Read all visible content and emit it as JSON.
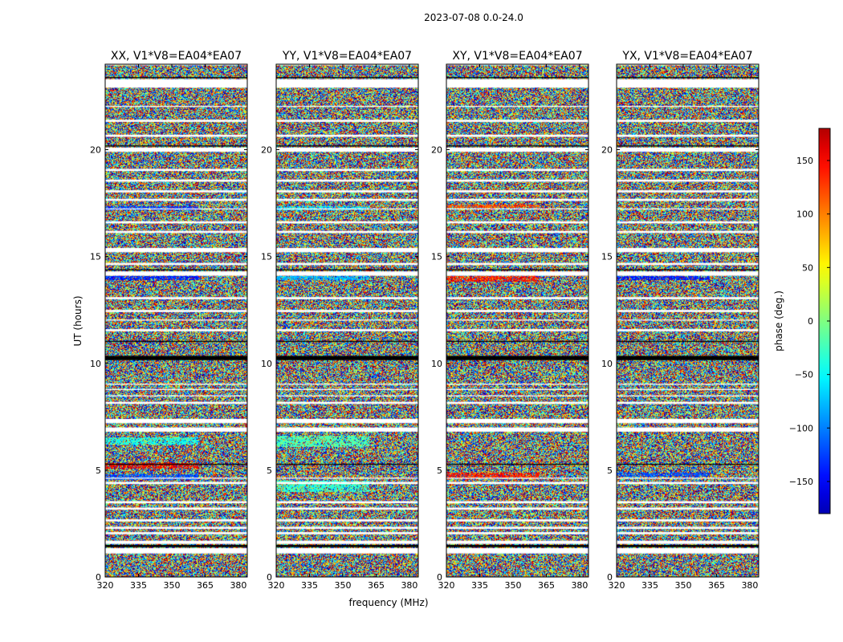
{
  "chart_data": {
    "type": "heatmap",
    "suptitle": "2023-07-08 0.0-24.0",
    "xlabel": "frequency (MHz)",
    "ylabel": "UT (hours)",
    "xlim": [
      320,
      384
    ],
    "ylim": [
      0,
      24
    ],
    "x_ticks": [
      320,
      335,
      350,
      365,
      380
    ],
    "y_ticks": [
      0,
      5,
      10,
      15,
      20
    ],
    "panels": [
      {
        "title": "XX, V1*V8=EA04*EA07",
        "polarization": "XX"
      },
      {
        "title": "YY, V1*V8=EA04*EA07",
        "polarization": "YY"
      },
      {
        "title": "XY, V1*V8=EA04*EA07",
        "polarization": "XY"
      },
      {
        "title": "YX, V1*V8=EA04*EA07",
        "polarization": "YX"
      }
    ],
    "colorbar": {
      "label": "phase (deg.)",
      "range": [
        -180,
        180
      ],
      "ticks": [
        -150,
        -100,
        -50,
        0,
        50,
        100,
        150
      ],
      "colormap": "jet",
      "colors": [
        "#00008f",
        "#0000ff",
        "#00ffff",
        "#7fff7f",
        "#ffff00",
        "#ff0000",
        "#7f0000"
      ]
    },
    "data_gaps_hours": [
      [
        1.1,
        1.35
      ],
      [
        1.55,
        1.7
      ],
      [
        2.0,
        2.1
      ],
      [
        2.25,
        2.35
      ],
      [
        2.6,
        2.7
      ],
      [
        3.15,
        3.25
      ],
      [
        3.45,
        3.55
      ],
      [
        4.35,
        4.45
      ],
      [
        4.6,
        4.65
      ],
      [
        6.8,
        7.0
      ],
      [
        7.2,
        7.4
      ],
      [
        8.1,
        8.2
      ],
      [
        8.45,
        8.5
      ],
      [
        8.75,
        8.8
      ],
      [
        9.0,
        9.05
      ],
      [
        11.5,
        11.6
      ],
      [
        12.0,
        12.05
      ],
      [
        12.4,
        12.5
      ],
      [
        13.0,
        13.1
      ],
      [
        14.1,
        14.3
      ],
      [
        14.6,
        14.7
      ],
      [
        15.2,
        15.4
      ],
      [
        16.1,
        16.2
      ],
      [
        16.55,
        16.65
      ],
      [
        17.2,
        17.25
      ],
      [
        17.6,
        17.7
      ],
      [
        18.0,
        18.1
      ],
      [
        18.5,
        18.6
      ],
      [
        19.0,
        19.1
      ],
      [
        19.9,
        20.1
      ],
      [
        20.6,
        20.7
      ],
      [
        21.3,
        21.4
      ],
      [
        22.0,
        22.05
      ],
      [
        22.9,
        23.3
      ]
    ],
    "black_bands_hours": [
      [
        1.4,
        1.5
      ],
      [
        10.15,
        10.35
      ],
      [
        11.0,
        11.05
      ],
      [
        14.35,
        14.4
      ],
      [
        20.15,
        20.2
      ],
      [
        23.35,
        23.4
      ],
      [
        5.25,
        5.3
      ]
    ]
  }
}
